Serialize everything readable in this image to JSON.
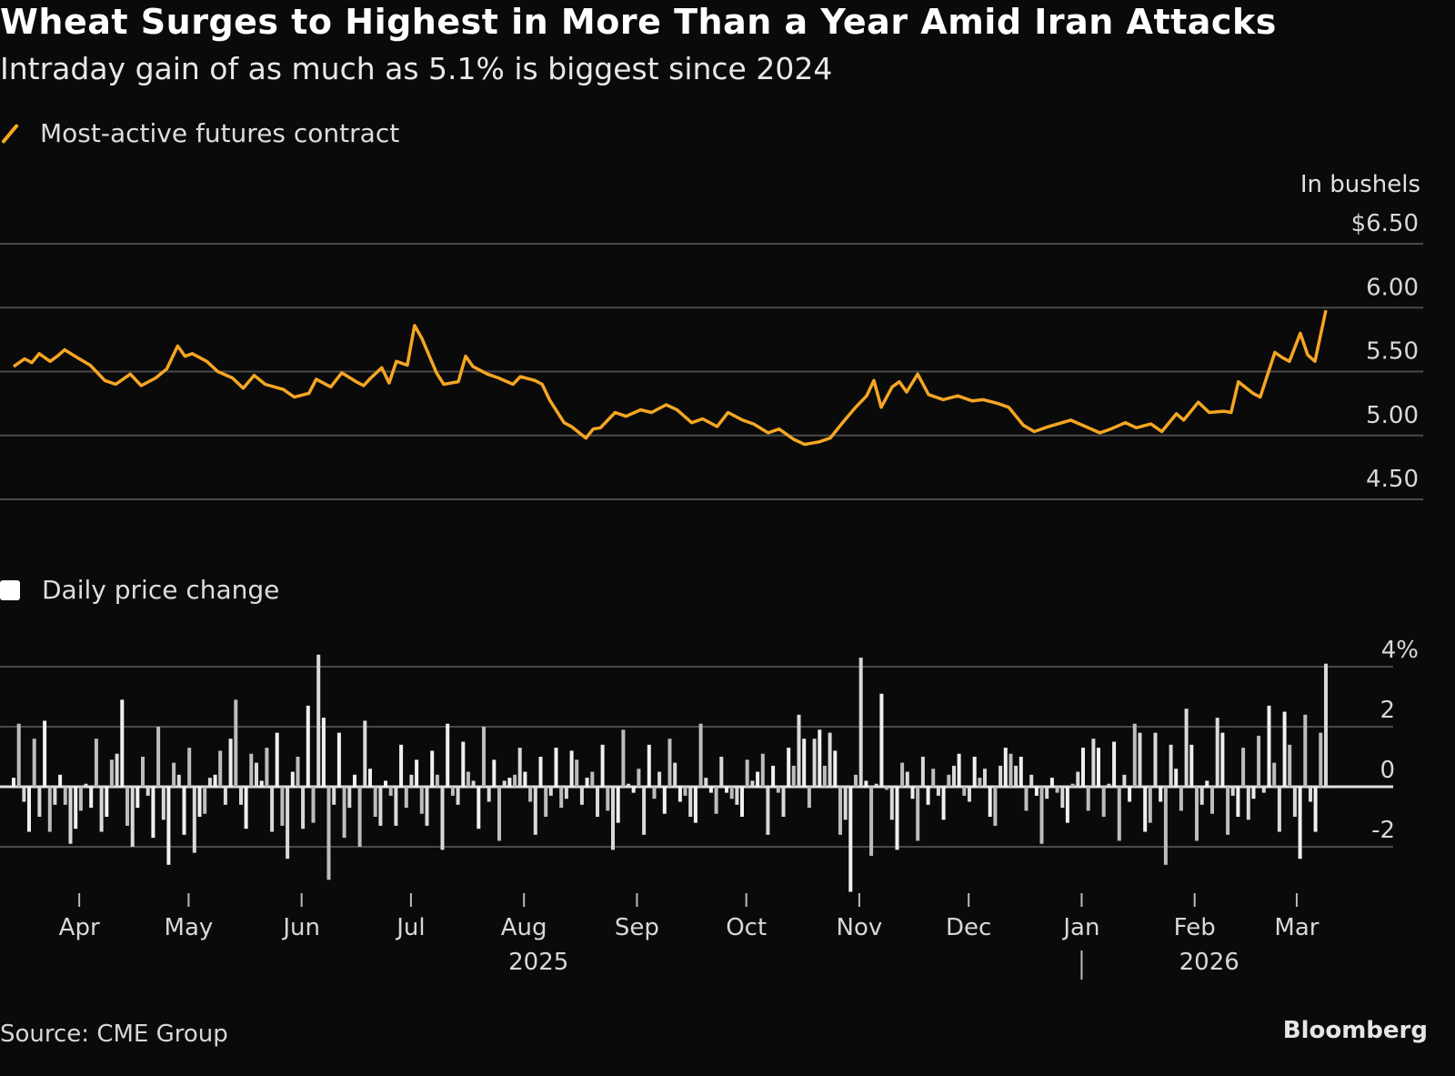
{
  "header": {
    "title": "Wheat Surges to Highest in More Than a Year Amid Iran Attacks",
    "subtitle": "Intraday gain of as much as 5.1% is biggest since 2024"
  },
  "footer": {
    "source": "Source: CME Group",
    "brand": "Bloomberg"
  },
  "colors": {
    "background": "#0a0a0a",
    "line": "#f5a623",
    "bars": "#d9d9d9",
    "grid": "#4a4a4a"
  },
  "chart_data": [
    {
      "type": "line",
      "title": "Wheat Surges to Highest in More Than a Year Amid Iran Attacks",
      "legend": "Most-active futures contract",
      "ylabel": "In bushels",
      "yticks": [
        "$6.50",
        "6.00",
        "5.50",
        "5.00",
        "4.50"
      ],
      "ytick_values": [
        6.5,
        6.0,
        5.5,
        5.0,
        4.5
      ],
      "ylim": [
        4.5,
        6.5
      ],
      "grid": true,
      "x_range": [
        "2025-03-14",
        "2026-03-09"
      ],
      "series": [
        {
          "name": "Most-active futures contract",
          "points": [
            [
              "2025-03-14",
              5.54
            ],
            [
              "2025-03-17",
              5.6
            ],
            [
              "2025-03-19",
              5.57
            ],
            [
              "2025-03-21",
              5.64
            ],
            [
              "2025-03-24",
              5.58
            ],
            [
              "2025-03-26",
              5.62
            ],
            [
              "2025-03-28",
              5.67
            ],
            [
              "2025-04-01",
              5.6
            ],
            [
              "2025-04-04",
              5.55
            ],
            [
              "2025-04-08",
              5.43
            ],
            [
              "2025-04-11",
              5.4
            ],
            [
              "2025-04-15",
              5.48
            ],
            [
              "2025-04-18",
              5.39
            ],
            [
              "2025-04-22",
              5.45
            ],
            [
              "2025-04-25",
              5.52
            ],
            [
              "2025-04-28",
              5.7
            ],
            [
              "2025-04-30",
              5.62
            ],
            [
              "2025-05-02",
              5.64
            ],
            [
              "2025-05-06",
              5.58
            ],
            [
              "2025-05-09",
              5.5
            ],
            [
              "2025-05-13",
              5.45
            ],
            [
              "2025-05-16",
              5.37
            ],
            [
              "2025-05-19",
              5.47
            ],
            [
              "2025-05-22",
              5.4
            ],
            [
              "2025-05-27",
              5.36
            ],
            [
              "2025-05-30",
              5.3
            ],
            [
              "2025-06-03",
              5.33
            ],
            [
              "2025-06-05",
              5.44
            ],
            [
              "2025-06-09",
              5.38
            ],
            [
              "2025-06-12",
              5.49
            ],
            [
              "2025-06-16",
              5.42
            ],
            [
              "2025-06-18",
              5.39
            ],
            [
              "2025-06-20",
              5.45
            ],
            [
              "2025-06-23",
              5.53
            ],
            [
              "2025-06-25",
              5.41
            ],
            [
              "2025-06-27",
              5.58
            ],
            [
              "2025-06-30",
              5.55
            ],
            [
              "2025-07-02",
              5.86
            ],
            [
              "2025-07-04",
              5.76
            ],
            [
              "2025-07-08",
              5.49
            ],
            [
              "2025-07-10",
              5.4
            ],
            [
              "2025-07-14",
              5.42
            ],
            [
              "2025-07-16",
              5.62
            ],
            [
              "2025-07-18",
              5.54
            ],
            [
              "2025-07-22",
              5.48
            ],
            [
              "2025-07-25",
              5.45
            ],
            [
              "2025-07-29",
              5.4
            ],
            [
              "2025-07-31",
              5.46
            ],
            [
              "2025-08-04",
              5.43
            ],
            [
              "2025-08-06",
              5.4
            ],
            [
              "2025-08-08",
              5.28
            ],
            [
              "2025-08-12",
              5.1
            ],
            [
              "2025-08-14",
              5.07
            ],
            [
              "2025-08-18",
              4.98
            ],
            [
              "2025-08-20",
              5.05
            ],
            [
              "2025-08-22",
              5.06
            ],
            [
              "2025-08-26",
              5.18
            ],
            [
              "2025-08-29",
              5.15
            ],
            [
              "2025-09-02",
              5.2
            ],
            [
              "2025-09-05",
              5.18
            ],
            [
              "2025-09-09",
              5.24
            ],
            [
              "2025-09-12",
              5.2
            ],
            [
              "2025-09-16",
              5.1
            ],
            [
              "2025-09-19",
              5.13
            ],
            [
              "2025-09-23",
              5.07
            ],
            [
              "2025-09-26",
              5.18
            ],
            [
              "2025-09-30",
              5.12
            ],
            [
              "2025-10-03",
              5.09
            ],
            [
              "2025-10-07",
              5.02
            ],
            [
              "2025-10-10",
              5.05
            ],
            [
              "2025-10-14",
              4.97
            ],
            [
              "2025-10-17",
              4.93
            ],
            [
              "2025-10-21",
              4.95
            ],
            [
              "2025-10-24",
              4.98
            ],
            [
              "2025-10-28",
              5.12
            ],
            [
              "2025-10-31",
              5.22
            ],
            [
              "2025-11-03",
              5.31
            ],
            [
              "2025-11-05",
              5.43
            ],
            [
              "2025-11-07",
              5.22
            ],
            [
              "2025-11-10",
              5.38
            ],
            [
              "2025-11-12",
              5.42
            ],
            [
              "2025-11-14",
              5.34
            ],
            [
              "2025-11-17",
              5.48
            ],
            [
              "2025-11-20",
              5.32
            ],
            [
              "2025-11-24",
              5.28
            ],
            [
              "2025-11-28",
              5.31
            ],
            [
              "2025-12-02",
              5.27
            ],
            [
              "2025-12-05",
              5.28
            ],
            [
              "2025-12-09",
              5.25
            ],
            [
              "2025-12-12",
              5.22
            ],
            [
              "2025-12-16",
              5.08
            ],
            [
              "2025-12-19",
              5.03
            ],
            [
              "2025-12-23",
              5.07
            ],
            [
              "2025-12-29",
              5.12
            ],
            [
              "2026-01-02",
              5.07
            ],
            [
              "2026-01-06",
              5.02
            ],
            [
              "2026-01-09",
              5.05
            ],
            [
              "2026-01-13",
              5.1
            ],
            [
              "2026-01-16",
              5.06
            ],
            [
              "2026-01-20",
              5.09
            ],
            [
              "2026-01-23",
              5.03
            ],
            [
              "2026-01-27",
              5.17
            ],
            [
              "2026-01-29",
              5.12
            ],
            [
              "2026-02-02",
              5.26
            ],
            [
              "2026-02-05",
              5.18
            ],
            [
              "2026-02-09",
              5.19
            ],
            [
              "2026-02-11",
              5.18
            ],
            [
              "2026-02-13",
              5.42
            ],
            [
              "2026-02-17",
              5.33
            ],
            [
              "2026-02-19",
              5.3
            ],
            [
              "2026-02-23",
              5.65
            ],
            [
              "2026-02-25",
              5.61
            ],
            [
              "2026-02-27",
              5.58
            ],
            [
              "2026-03-02",
              5.8
            ],
            [
              "2026-03-04",
              5.63
            ],
            [
              "2026-03-06",
              5.58
            ],
            [
              "2026-03-09",
              5.98
            ]
          ]
        }
      ]
    },
    {
      "type": "bar",
      "legend": "Daily price change",
      "ylabel": "%",
      "yticks": [
        "4%",
        "2",
        "0",
        "-2"
      ],
      "ytick_values": [
        4,
        2,
        0,
        -2
      ],
      "ylim": [
        -3.5,
        4.4
      ],
      "grid": true,
      "xticks": [
        "Apr",
        "May",
        "Jun",
        "Jul",
        "Aug",
        "Sep",
        "Oct",
        "Nov",
        "Dec",
        "Jan",
        "Feb",
        "Mar"
      ],
      "year_labels": [
        "2025",
        "2026"
      ],
      "x_range": [
        "2025-03-14",
        "2026-03-09"
      ],
      "values": [
        0.3,
        2.1,
        -0.5,
        -1.5,
        1.6,
        -1.0,
        2.2,
        -1.5,
        -0.6,
        0.4,
        -0.6,
        -1.9,
        -1.4,
        -0.8,
        0.1,
        -0.7,
        1.6,
        -1.5,
        -1.0,
        0.9,
        1.1,
        2.9,
        -1.3,
        -2.0,
        -0.7,
        1.0,
        -0.3,
        -1.7,
        2.0,
        -1.1,
        -2.6,
        0.8,
        0.4,
        -1.6,
        1.3,
        -2.2,
        -1.0,
        -0.9,
        0.3,
        0.4,
        1.2,
        -0.6,
        1.6,
        2.9,
        -0.6,
        -1.4,
        1.1,
        0.8,
        0.2,
        1.3,
        -1.5,
        1.8,
        -1.3,
        -2.4,
        0.5,
        1.0,
        -1.4,
        2.7,
        -1.2,
        4.4,
        2.3,
        -3.1,
        -0.6,
        1.8,
        -1.7,
        -0.7,
        0.4,
        -2.0,
        2.2,
        0.6,
        -1.0,
        -1.3,
        0.2,
        -0.3,
        -1.3,
        1.4,
        -0.7,
        0.4,
        0.9,
        -0.9,
        -1.3,
        1.2,
        0.4,
        -2.1,
        2.1,
        -0.3,
        -0.6,
        1.5,
        0.5,
        0.2,
        -1.4,
        2.0,
        -0.5,
        0.9,
        -1.8,
        0.2,
        0.3,
        0.4,
        1.3,
        0.5,
        -0.5,
        -1.6,
        1.0,
        -1.0,
        -0.3,
        1.3,
        -0.7,
        -0.4,
        1.2,
        0.9,
        -0.6,
        0.3,
        0.5,
        -1.0,
        1.4,
        -0.8,
        -2.1,
        -1.2,
        1.9,
        0.1,
        -0.2,
        0.6,
        -1.6,
        1.4,
        -0.4,
        0.5,
        -0.9,
        1.6,
        0.8,
        -0.5,
        -0.3,
        -1.0,
        -1.2,
        2.1,
        0.3,
        -0.2,
        -0.9,
        1.0,
        -0.2,
        -0.4,
        -0.6,
        -1.0,
        0.9,
        0.2,
        0.5,
        1.1,
        -1.6,
        0.7,
        -0.2,
        -1.0,
        1.3,
        0.7,
        2.4,
        1.6,
        -0.7,
        1.6,
        1.9,
        0.7,
        1.8,
        1.2,
        -1.6,
        -1.1,
        -3.5,
        0.4,
        4.3,
        0.2,
        -2.3,
        0.1,
        3.1,
        -0.1,
        -1.1,
        -2.1,
        0.8,
        0.5,
        -0.4,
        -1.8,
        1.0,
        -0.6,
        0.6,
        -0.3,
        -1.1,
        0.4,
        0.7,
        1.1,
        -0.3,
        -0.5,
        1.0,
        0.3,
        0.6,
        -1.0,
        -1.3,
        0.7,
        1.3,
        1.1,
        0.7,
        1.0,
        -0.8,
        0.4,
        -0.3,
        -1.9,
        -0.4,
        0.3,
        -0.2,
        -0.7,
        -1.2,
        0.1,
        0.5,
        1.3,
        -0.8,
        1.6,
        1.3,
        -1.0,
        0.1,
        1.5,
        -1.8,
        0.4,
        -0.5,
        2.1,
        1.8,
        -1.5,
        -1.2,
        1.8,
        -0.5,
        -2.6,
        1.4,
        0.6,
        -0.8,
        2.6,
        1.4,
        -1.8,
        -0.6,
        0.2,
        -0.9,
        2.3,
        1.8,
        -1.6,
        -0.3,
        -1.0,
        1.3,
        -1.1,
        -0.4,
        1.7,
        -0.2,
        2.7,
        0.8,
        -1.5,
        2.5,
        1.4,
        -1.0,
        -2.4,
        2.4,
        -0.5,
        -1.5,
        1.8,
        4.1
      ]
    }
  ]
}
